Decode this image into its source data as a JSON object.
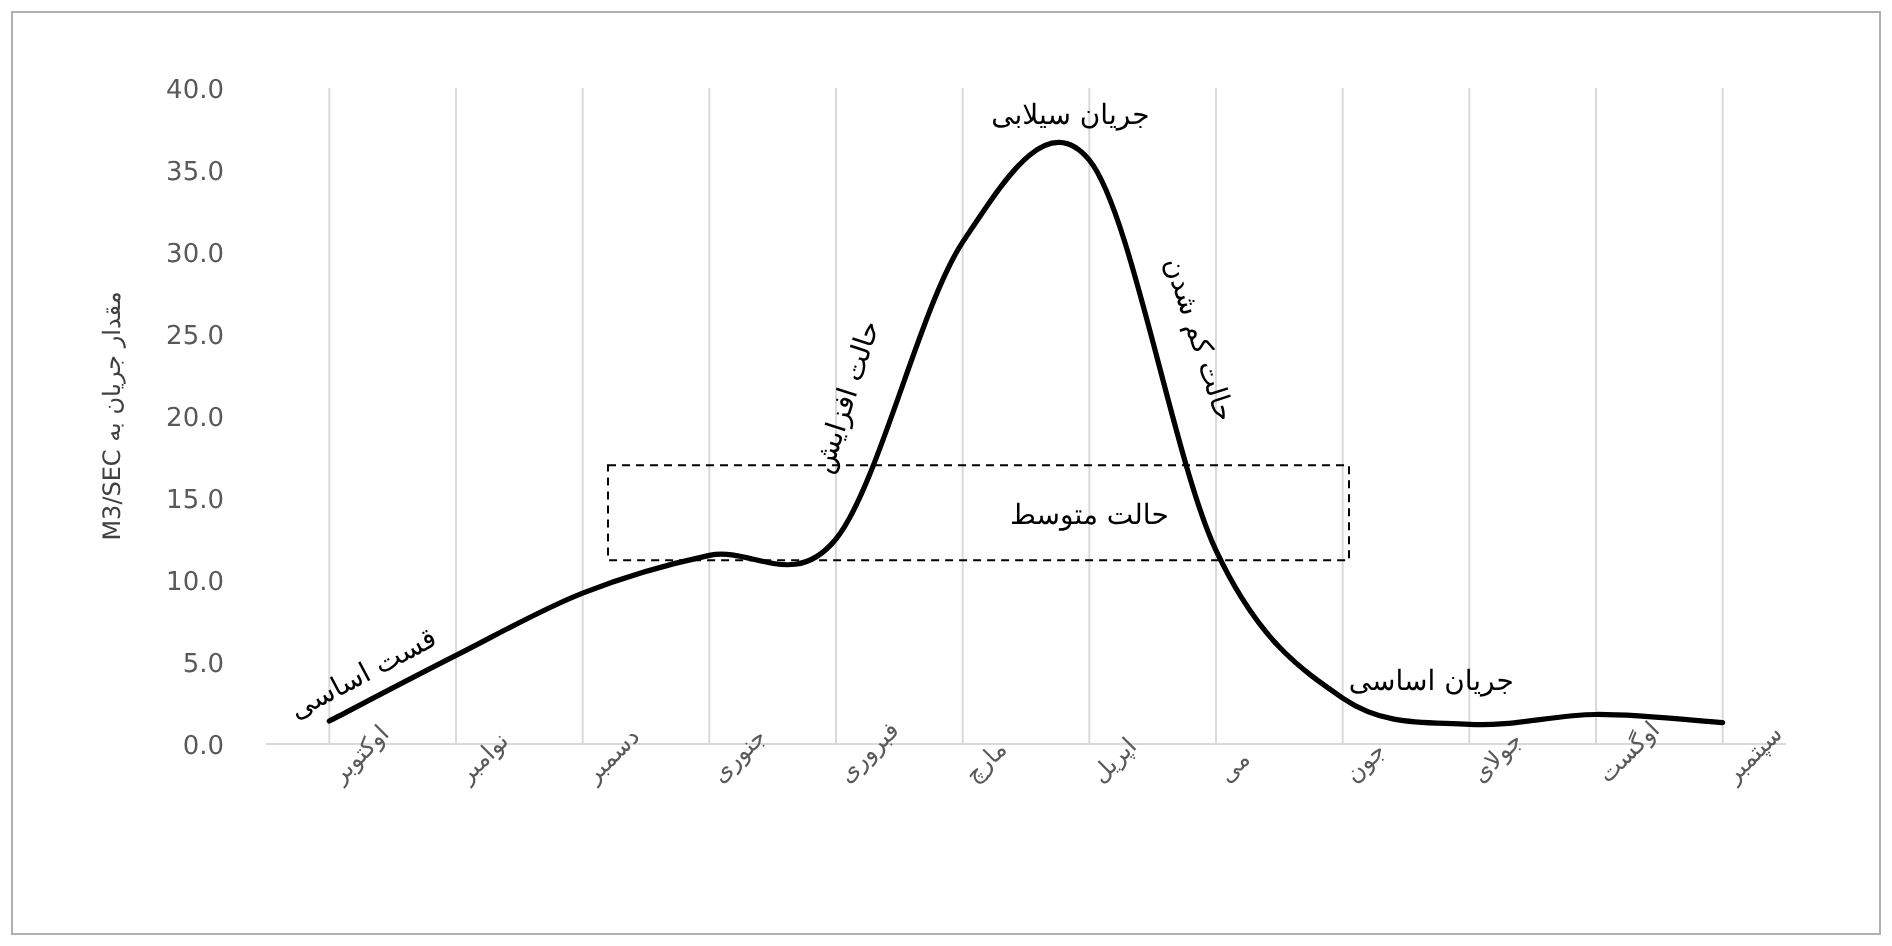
{
  "chart_data": {
    "type": "line",
    "ylabel": "مقدار جریان به M3/SEC",
    "categories": [
      "اوکتوبر",
      "نوامبر",
      "دسمبر",
      "جنوری",
      "فبروری",
      "مارچ",
      "اپریل",
      "می",
      "جون",
      "جولای",
      "اوگست",
      "سپتمبر"
    ],
    "series": [
      {
        "color": "#000000",
        "values": [
          1.4,
          5.4,
          9.2,
          11.5,
          12.5,
          30.6,
          35.6,
          11.8,
          2.8,
          1.2,
          1.8,
          1.3
        ]
      }
    ],
    "ylim": [
      0,
      40
    ],
    "yticks": [
      {
        "value": 0,
        "label": "0.0"
      },
      {
        "value": 5,
        "label": "5.0"
      },
      {
        "value": 10,
        "label": "10.0"
      },
      {
        "value": 15,
        "label": "15.0"
      },
      {
        "value": 20,
        "label": "20.0"
      },
      {
        "value": 25,
        "label": "25.0"
      },
      {
        "value": 30,
        "label": "30.0"
      },
      {
        "value": 35,
        "label": "35.0"
      },
      {
        "value": 40,
        "label": "40.0"
      }
    ],
    "grid": "x",
    "line_style": "solid",
    "annotations": [
      "قست اساسی",
      "حالت افزایش",
      "جریان سیلابی",
      "حالت کم شدن",
      "جریان اساسی",
      "حالت متوسط"
    ]
  }
}
